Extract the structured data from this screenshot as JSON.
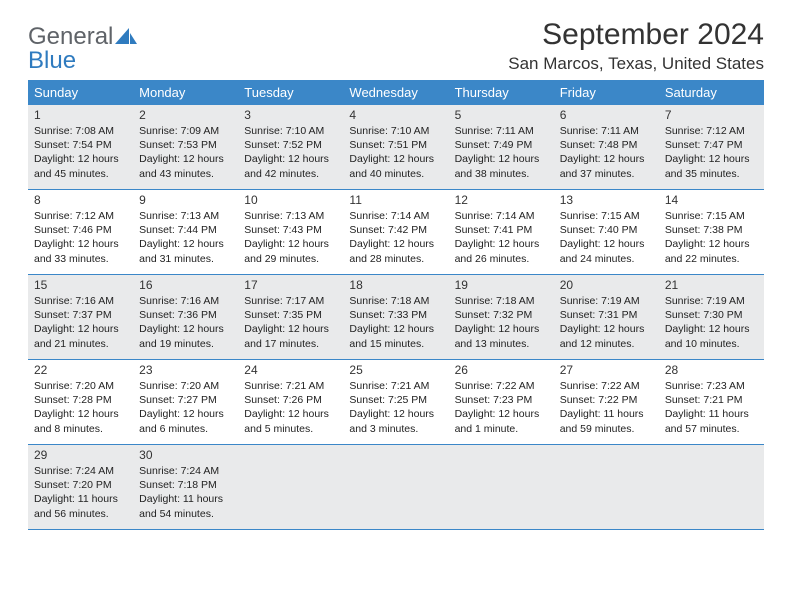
{
  "logo": {
    "general": "General",
    "blue": "Blue"
  },
  "title": "September 2024",
  "location": "San Marcos, Texas, United States",
  "colors": {
    "header_bg": "#3b87c8",
    "week_alt_bg": "#e9eaeb",
    "week_border": "#3b87c8",
    "logo_gray": "#5f6368",
    "logo_blue": "#2f7bbf"
  },
  "day_names": [
    "Sunday",
    "Monday",
    "Tuesday",
    "Wednesday",
    "Thursday",
    "Friday",
    "Saturday"
  ],
  "fonts": {
    "title_size": 30,
    "location_size": 17,
    "dayhead_size": 13,
    "daynum_size": 12,
    "line_size": 10.5
  },
  "days": [
    {
      "n": "1",
      "sr": "Sunrise: 7:08 AM",
      "ss": "Sunset: 7:54 PM",
      "d1": "Daylight: 12 hours",
      "d2": "and 45 minutes."
    },
    {
      "n": "2",
      "sr": "Sunrise: 7:09 AM",
      "ss": "Sunset: 7:53 PM",
      "d1": "Daylight: 12 hours",
      "d2": "and 43 minutes."
    },
    {
      "n": "3",
      "sr": "Sunrise: 7:10 AM",
      "ss": "Sunset: 7:52 PM",
      "d1": "Daylight: 12 hours",
      "d2": "and 42 minutes."
    },
    {
      "n": "4",
      "sr": "Sunrise: 7:10 AM",
      "ss": "Sunset: 7:51 PM",
      "d1": "Daylight: 12 hours",
      "d2": "and 40 minutes."
    },
    {
      "n": "5",
      "sr": "Sunrise: 7:11 AM",
      "ss": "Sunset: 7:49 PM",
      "d1": "Daylight: 12 hours",
      "d2": "and 38 minutes."
    },
    {
      "n": "6",
      "sr": "Sunrise: 7:11 AM",
      "ss": "Sunset: 7:48 PM",
      "d1": "Daylight: 12 hours",
      "d2": "and 37 minutes."
    },
    {
      "n": "7",
      "sr": "Sunrise: 7:12 AM",
      "ss": "Sunset: 7:47 PM",
      "d1": "Daylight: 12 hours",
      "d2": "and 35 minutes."
    },
    {
      "n": "8",
      "sr": "Sunrise: 7:12 AM",
      "ss": "Sunset: 7:46 PM",
      "d1": "Daylight: 12 hours",
      "d2": "and 33 minutes."
    },
    {
      "n": "9",
      "sr": "Sunrise: 7:13 AM",
      "ss": "Sunset: 7:44 PM",
      "d1": "Daylight: 12 hours",
      "d2": "and 31 minutes."
    },
    {
      "n": "10",
      "sr": "Sunrise: 7:13 AM",
      "ss": "Sunset: 7:43 PM",
      "d1": "Daylight: 12 hours",
      "d2": "and 29 minutes."
    },
    {
      "n": "11",
      "sr": "Sunrise: 7:14 AM",
      "ss": "Sunset: 7:42 PM",
      "d1": "Daylight: 12 hours",
      "d2": "and 28 minutes."
    },
    {
      "n": "12",
      "sr": "Sunrise: 7:14 AM",
      "ss": "Sunset: 7:41 PM",
      "d1": "Daylight: 12 hours",
      "d2": "and 26 minutes."
    },
    {
      "n": "13",
      "sr": "Sunrise: 7:15 AM",
      "ss": "Sunset: 7:40 PM",
      "d1": "Daylight: 12 hours",
      "d2": "and 24 minutes."
    },
    {
      "n": "14",
      "sr": "Sunrise: 7:15 AM",
      "ss": "Sunset: 7:38 PM",
      "d1": "Daylight: 12 hours",
      "d2": "and 22 minutes."
    },
    {
      "n": "15",
      "sr": "Sunrise: 7:16 AM",
      "ss": "Sunset: 7:37 PM",
      "d1": "Daylight: 12 hours",
      "d2": "and 21 minutes."
    },
    {
      "n": "16",
      "sr": "Sunrise: 7:16 AM",
      "ss": "Sunset: 7:36 PM",
      "d1": "Daylight: 12 hours",
      "d2": "and 19 minutes."
    },
    {
      "n": "17",
      "sr": "Sunrise: 7:17 AM",
      "ss": "Sunset: 7:35 PM",
      "d1": "Daylight: 12 hours",
      "d2": "and 17 minutes."
    },
    {
      "n": "18",
      "sr": "Sunrise: 7:18 AM",
      "ss": "Sunset: 7:33 PM",
      "d1": "Daylight: 12 hours",
      "d2": "and 15 minutes."
    },
    {
      "n": "19",
      "sr": "Sunrise: 7:18 AM",
      "ss": "Sunset: 7:32 PM",
      "d1": "Daylight: 12 hours",
      "d2": "and 13 minutes."
    },
    {
      "n": "20",
      "sr": "Sunrise: 7:19 AM",
      "ss": "Sunset: 7:31 PM",
      "d1": "Daylight: 12 hours",
      "d2": "and 12 minutes."
    },
    {
      "n": "21",
      "sr": "Sunrise: 7:19 AM",
      "ss": "Sunset: 7:30 PM",
      "d1": "Daylight: 12 hours",
      "d2": "and 10 minutes."
    },
    {
      "n": "22",
      "sr": "Sunrise: 7:20 AM",
      "ss": "Sunset: 7:28 PM",
      "d1": "Daylight: 12 hours",
      "d2": "and 8 minutes."
    },
    {
      "n": "23",
      "sr": "Sunrise: 7:20 AM",
      "ss": "Sunset: 7:27 PM",
      "d1": "Daylight: 12 hours",
      "d2": "and 6 minutes."
    },
    {
      "n": "24",
      "sr": "Sunrise: 7:21 AM",
      "ss": "Sunset: 7:26 PM",
      "d1": "Daylight: 12 hours",
      "d2": "and 5 minutes."
    },
    {
      "n": "25",
      "sr": "Sunrise: 7:21 AM",
      "ss": "Sunset: 7:25 PM",
      "d1": "Daylight: 12 hours",
      "d2": "and 3 minutes."
    },
    {
      "n": "26",
      "sr": "Sunrise: 7:22 AM",
      "ss": "Sunset: 7:23 PM",
      "d1": "Daylight: 12 hours",
      "d2": "and 1 minute."
    },
    {
      "n": "27",
      "sr": "Sunrise: 7:22 AM",
      "ss": "Sunset: 7:22 PM",
      "d1": "Daylight: 11 hours",
      "d2": "and 59 minutes."
    },
    {
      "n": "28",
      "sr": "Sunrise: 7:23 AM",
      "ss": "Sunset: 7:21 PM",
      "d1": "Daylight: 11 hours",
      "d2": "and 57 minutes."
    },
    {
      "n": "29",
      "sr": "Sunrise: 7:24 AM",
      "ss": "Sunset: 7:20 PM",
      "d1": "Daylight: 11 hours",
      "d2": "and 56 minutes."
    },
    {
      "n": "30",
      "sr": "Sunrise: 7:24 AM",
      "ss": "Sunset: 7:18 PM",
      "d1": "Daylight: 11 hours",
      "d2": "and 54 minutes."
    }
  ]
}
